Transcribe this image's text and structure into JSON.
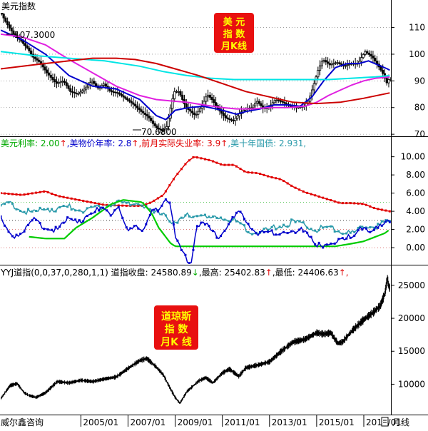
{
  "colors": {
    "background": "#ffffff",
    "frame": "#000000",
    "price": "#000000",
    "ma_blue": "#0000cc",
    "ma_magenta": "#e020e0",
    "ma_cyan": "#00e5e5",
    "ma_red": "#cc0000",
    "rate_green": "#00cc00",
    "cpi_blue": "#0000cc",
    "unemployment_red": "#e00000",
    "bond_teal": "#2a9aaa",
    "dow": "#000000",
    "badge_bg": "#e81010",
    "badge_text": "#ffff00",
    "grid_dotted": "#666666",
    "grid_green": "#33bb33",
    "grid_red": "#cc3333"
  },
  "panel1": {
    "title": "美元指数",
    "badge_lines": [
      "美 元",
      "指 数",
      "月K线"
    ],
    "annotation_high": "107.3000",
    "annotation_low": "70.6800"
  },
  "panel2": {
    "legend": [
      {
        "label": "美元利率: ",
        "value": "2.00",
        "arrow": "↑",
        "label_color": "#00aa00",
        "value_color": "#00aa00"
      },
      {
        "label": ",美物价年率: ",
        "value": "2.8",
        "arrow": "↑",
        "label_color": "#0000cc",
        "value_color": "#0000cc"
      },
      {
        "label": ",前月实际失业率: ",
        "value": "3.9",
        "arrow": "↑",
        "label_color": "#e00000",
        "value_color": "#e00000"
      },
      {
        "label": ",美十年国债: ",
        "value": "2.931",
        "arrow": ",",
        "label_color": "#2a9aaa",
        "value_color": "#2a9aaa"
      }
    ]
  },
  "panel3": {
    "legend": [
      {
        "text": "YYJ道指(0,0,37,0,280,1,1) ",
        "color": "#000000"
      },
      {
        "text": "道指收盘: 24580.89",
        "color": "#000000"
      },
      {
        "text": "↓",
        "color": "#00aa00"
      },
      {
        "text": ",最高: 25402.83",
        "color": "#000000"
      },
      {
        "text": "↑",
        "color": "#e00000"
      },
      {
        "text": ",最低: 24406.63",
        "color": "#000000"
      },
      {
        "text": "↑,",
        "color": "#e00000"
      }
    ],
    "badge_lines": [
      "道琼斯",
      "指 数",
      "月K 线"
    ]
  },
  "footer": {
    "source": "威尔鑫咨询",
    "period_label": "月线"
  },
  "chart_data": [
    {
      "type": "line",
      "title": "美元指数",
      "ytick_labels": [
        "110",
        "100",
        "90",
        "80",
        "70"
      ],
      "yticks": [
        110,
        100,
        90,
        80,
        70
      ],
      "ylim": [
        69.5,
        115.5
      ],
      "xlim": [
        2001.6,
        2018.15
      ],
      "grid": true,
      "series": [
        {
          "name": "price",
          "x": [
            2001.6,
            2001.8,
            2002.0,
            2002.2,
            2002.5,
            2002.8,
            2003.0,
            2003.3,
            2003.6,
            2004.0,
            2004.3,
            2004.6,
            2004.9,
            2005.2,
            2005.5,
            2005.8,
            2006.0,
            2006.3,
            2006.6,
            2007.0,
            2007.3,
            2007.6,
            2007.9,
            2008.1,
            2008.3,
            2008.5,
            2008.7,
            2008.9,
            2009.0,
            2009.2,
            2009.5,
            2009.9,
            2010.2,
            2010.4,
            2010.6,
            2010.9,
            2011.2,
            2011.5,
            2011.8,
            2012.0,
            2012.3,
            2012.5,
            2012.8,
            2013.0,
            2013.3,
            2013.6,
            2013.9,
            2014.2,
            2014.5,
            2014.7,
            2014.9,
            2015.1,
            2015.3,
            2015.6,
            2015.9,
            2016.2,
            2016.5,
            2016.8,
            2016.95,
            2017.1,
            2017.4,
            2017.7,
            2017.9,
            2018.0,
            2018.1
          ],
          "values": [
            116.5,
            113,
            110,
            107.5,
            105,
            102,
            99,
            97,
            93,
            89,
            90,
            86,
            85,
            87,
            90,
            87,
            89,
            86,
            85.5,
            83,
            81,
            78.5,
            76.5,
            74,
            72,
            71.5,
            73,
            82,
            86,
            86,
            80,
            77,
            81,
            85,
            83,
            79,
            76,
            75,
            78,
            79.5,
            80,
            82.5,
            79.5,
            80,
            83,
            82,
            80.5,
            80,
            80.5,
            82.5,
            88,
            94,
            98,
            96,
            97,
            95.5,
            96.5,
            96.5,
            99,
            101,
            99,
            95,
            92,
            89,
            90.5
          ]
        },
        {
          "name": "ma_blue",
          "x": [
            2001.6,
            2002.5,
            2003.5,
            2004.5,
            2005.5,
            2006.5,
            2007.5,
            2008.2,
            2008.6,
            2009.0,
            2009.6,
            2010.2,
            2011.0,
            2011.6,
            2012.0,
            2012.6,
            2013.2,
            2013.8,
            2014.3,
            2014.8,
            2015.3,
            2015.8,
            2016.3,
            2016.8,
            2017.2,
            2017.6,
            2018.0,
            2018.1
          ],
          "values": [
            109,
            105.5,
            100,
            92,
            88,
            87,
            83,
            77,
            75.5,
            79,
            80,
            80.5,
            79,
            77.5,
            78.5,
            79.5,
            81,
            81,
            80.5,
            84,
            90,
            95,
            96.5,
            96.5,
            97.5,
            96,
            94.5,
            94
          ]
        },
        {
          "name": "ma_magenta",
          "x": [
            2001.6,
            2002.5,
            2003.5,
            2004.5,
            2005.5,
            2006.5,
            2007.5,
            2008.2,
            2008.8,
            2009.5,
            2010.2,
            2011.0,
            2011.6,
            2012.3,
            2013.0,
            2013.8,
            2014.5,
            2015.0,
            2015.5,
            2016.0,
            2016.5,
            2017.0,
            2017.5,
            2018.1
          ],
          "values": [
            107.5,
            106.5,
            103.5,
            98,
            93,
            88,
            84.5,
            83,
            82.5,
            82,
            81,
            80,
            79.5,
            79.5,
            80,
            80,
            80.5,
            82,
            84.5,
            86.5,
            88.5,
            90,
            91,
            91.5
          ]
        },
        {
          "name": "ma_cyan",
          "x": [
            2001.6,
            2003.0,
            2004.5,
            2006.0,
            2007.5,
            2008.5,
            2009.5,
            2010.5,
            2011.5,
            2012.5,
            2013.5,
            2014.5,
            2015.5,
            2016.5,
            2017.5,
            2018.1
          ],
          "values": [
            101,
            99.5,
            98.5,
            97.5,
            95.5,
            93.5,
            92,
            91,
            90.5,
            90.5,
            90.5,
            90.5,
            90.5,
            91,
            91.5,
            92
          ]
        },
        {
          "name": "ma_red",
          "x": [
            2001.6,
            2003.0,
            2004.5,
            2005.5,
            2006.5,
            2007.3,
            2008.2,
            2009.0,
            2010.0,
            2011.0,
            2012.0,
            2013.0,
            2014.0,
            2015.0,
            2016.0,
            2017.0,
            2018.1
          ],
          "values": [
            94.5,
            96,
            97.5,
            98.5,
            98.5,
            98,
            96.5,
            94.5,
            92,
            89,
            86,
            84,
            82,
            81.5,
            82,
            83.5,
            85.5
          ]
        }
      ]
    },
    {
      "type": "line",
      "ytick_labels": [
        "10.00",
        "8.00",
        "6.00",
        "4.00",
        "2.00",
        "0.00"
      ],
      "yticks": [
        10,
        8,
        6,
        4,
        2,
        0
      ],
      "ylim": [
        -1.8,
        10.6
      ],
      "xlim": [
        2001.6,
        2018.15
      ],
      "grid": true,
      "series": [
        {
          "name": "美元利率",
          "x": [
            2002.8,
            2003.5,
            2004.3,
            2004.8,
            2005.5,
            2006.3,
            2006.8,
            2007.6,
            2008.0,
            2008.3,
            2008.8,
            2009.0,
            2010.0,
            2012.0,
            2014.0,
            2015.8,
            2016.5,
            2017.0,
            2017.5,
            2017.9,
            2018.1
          ],
          "values": [
            1.2,
            1.0,
            1.0,
            2.2,
            3.3,
            4.8,
            5.25,
            5.0,
            3.8,
            2.2,
            0.5,
            0.15,
            0.15,
            0.15,
            0.15,
            0.15,
            0.45,
            0.7,
            1.2,
            1.6,
            2.0
          ]
        },
        {
          "name": "美物价年率",
          "x": [
            2001.6,
            2002.0,
            2002.5,
            2003.0,
            2003.5,
            2004.0,
            2004.5,
            2005.0,
            2005.5,
            2005.9,
            2006.3,
            2006.6,
            2006.9,
            2007.3,
            2007.7,
            2008.0,
            2008.3,
            2008.6,
            2008.8,
            2009.0,
            2009.2,
            2009.5,
            2009.7,
            2009.9,
            2010.3,
            2010.8,
            2011.3,
            2011.7,
            2012.0,
            2012.5,
            2013.0,
            2013.5,
            2014.0,
            2014.5,
            2014.9,
            2015.2,
            2015.6,
            2016.0,
            2016.5,
            2017.0,
            2017.2,
            2017.6,
            2018.0,
            2018.1
          ],
          "values": [
            3.2,
            1.2,
            1.6,
            3.0,
            2.1,
            1.9,
            3.2,
            3.0,
            3.6,
            4.7,
            3.8,
            4.2,
            2.0,
            2.6,
            2.0,
            4.0,
            4.2,
            5.5,
            5.0,
            1.0,
            0.0,
            -1.3,
            -1.5,
            2.7,
            2.5,
            1.1,
            2.7,
            3.8,
            2.9,
            1.7,
            1.5,
            1.8,
            1.5,
            2.1,
            0.8,
            -0.1,
            0.2,
            1.3,
            1.0,
            2.5,
            2.0,
            2.1,
            2.8,
            2.8
          ]
        },
        {
          "name": "前月实际失业率",
          "x": [
            2001.6,
            2002.5,
            2003.0,
            2003.5,
            2004.0,
            2005.0,
            2006.0,
            2007.0,
            2007.6,
            2008.0,
            2008.5,
            2009.0,
            2009.5,
            2009.8,
            2010.5,
            2011.0,
            2011.5,
            2012.0,
            2012.5,
            2013.0,
            2013.5,
            2014.0,
            2014.5,
            2015.0,
            2015.5,
            2016.0,
            2016.5,
            2017.0,
            2017.5,
            2018.1
          ],
          "values": [
            6.0,
            5.8,
            6.0,
            6.2,
            5.7,
            5.2,
            4.7,
            4.6,
            4.6,
            5.0,
            5.8,
            7.8,
            9.4,
            10.0,
            9.6,
            9.1,
            9.1,
            8.3,
            8.2,
            7.8,
            7.5,
            6.7,
            6.1,
            5.7,
            5.3,
            4.9,
            4.9,
            4.8,
            4.3,
            4.0
          ]
        },
        {
          "name": "美十年国债",
          "x": [
            2001.6,
            2002.0,
            2002.5,
            2003.0,
            2003.5,
            2004.0,
            2004.5,
            2005.0,
            2005.5,
            2006.0,
            2006.5,
            2007.0,
            2007.5,
            2008.0,
            2008.5,
            2009.0,
            2009.5,
            2010.0,
            2010.5,
            2011.0,
            2011.5,
            2012.0,
            2012.5,
            2013.0,
            2013.5,
            2014.0,
            2014.5,
            2015.0,
            2015.5,
            2016.0,
            2016.5,
            2017.0,
            2017.5,
            2018.1
          ],
          "values": [
            4.5,
            4.8,
            4.0,
            3.8,
            4.3,
            4.2,
            4.5,
            4.2,
            4.2,
            4.6,
            5.1,
            4.8,
            5.0,
            3.8,
            4.0,
            2.5,
            3.5,
            3.7,
            3.0,
            3.4,
            3.0,
            2.0,
            1.6,
            2.0,
            2.5,
            2.8,
            2.5,
            2.0,
            2.3,
            1.9,
            1.5,
            2.4,
            2.3,
            2.9
          ]
        }
      ]
    },
    {
      "type": "line",
      "ytick_labels": [
        "25000",
        "20000",
        "15000",
        "10000"
      ],
      "yticks": [
        25000,
        20000,
        15000,
        10000
      ],
      "ylim": [
        5500,
        27800
      ],
      "xlim": [
        2001.6,
        2018.15
      ],
      "grid": false,
      "series": [
        {
          "name": "道指",
          "x": [
            2001.6,
            2002.0,
            2002.3,
            2002.6,
            2002.8,
            2003.1,
            2003.5,
            2004.0,
            2004.5,
            2005.0,
            2005.5,
            2006.0,
            2006.5,
            2007.0,
            2007.5,
            2007.8,
            2008.2,
            2008.5,
            2008.8,
            2009.0,
            2009.2,
            2009.5,
            2010.0,
            2010.3,
            2010.6,
            2011.0,
            2011.3,
            2011.7,
            2012.0,
            2012.5,
            2013.0,
            2013.5,
            2014.0,
            2014.5,
            2015.0,
            2015.3,
            2015.6,
            2015.9,
            2016.1,
            2016.5,
            2017.0,
            2017.4,
            2017.7,
            2017.9,
            2018.0,
            2018.05,
            2018.1
          ],
          "values": [
            7800,
            9800,
            10100,
            8700,
            8300,
            8000,
            8700,
            10400,
            10200,
            10600,
            10400,
            10800,
            11100,
            12400,
            13600,
            13900,
            12600,
            11400,
            9300,
            8000,
            7100,
            8900,
            10500,
            11000,
            10200,
            11700,
            12300,
            11200,
            12500,
            12900,
            13400,
            15000,
            16400,
            16800,
            17800,
            17600,
            17800,
            16200,
            16400,
            18100,
            19800,
            20900,
            21900,
            23800,
            26100,
            25000,
            24580
          ]
        }
      ]
    }
  ],
  "xaxis": {
    "tick_labels": [
      "2005/01",
      "2007/01",
      "2009/01",
      "2011/01",
      "2013/01",
      "2015/01",
      "2017/01"
    ],
    "tick_values": [
      2005.0,
      2007.0,
      2009.0,
      2011.0,
      2013.0,
      2015.0,
      2017.0
    ]
  }
}
